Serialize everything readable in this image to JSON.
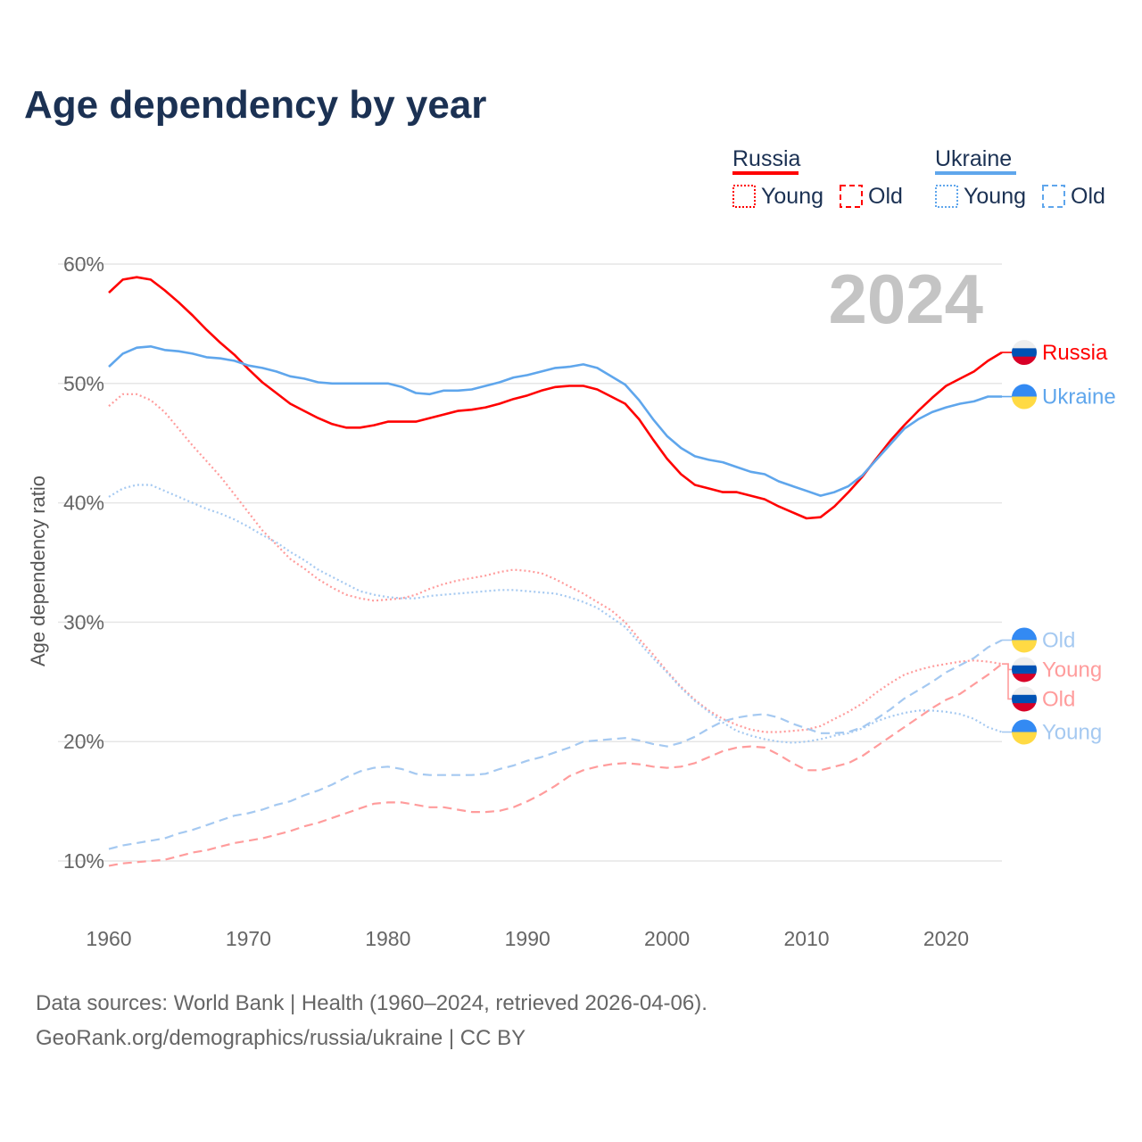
{
  "title": "Age dependency by year",
  "year_badge": "2024",
  "source_line1": "Data sources: World Bank | Health (1960–2024, retrieved 2026-04-06).",
  "source_line2": "GeoRank.org/demographics/russia/ukraine | CC BY",
  "legend": {
    "groups": [
      {
        "name": "Russia",
        "color": "#ff0000",
        "young": "Young",
        "old": "Old"
      },
      {
        "name": "Ukraine",
        "color": "#5fa6ec",
        "young": "Young",
        "old": "Old"
      }
    ]
  },
  "chart_data": {
    "type": "line",
    "title": "Age dependency by year",
    "xlabel": "",
    "ylabel": "Age dependency ratio",
    "xlim": [
      1960,
      2024
    ],
    "ylim": [
      10,
      60
    ],
    "x_ticks": [
      "1960",
      "1970",
      "1980",
      "1990",
      "2000",
      "2010",
      "2020"
    ],
    "y_ticks": [
      "10%",
      "20%",
      "30%",
      "40%",
      "50%",
      "60%"
    ],
    "y_tick_values": [
      10,
      20,
      30,
      40,
      50,
      60
    ],
    "x_tick_values": [
      1960,
      1970,
      1980,
      1990,
      2000,
      2010,
      2020
    ],
    "start_year": 1960,
    "grid": true,
    "legend_position": "top-right",
    "series": [
      {
        "name": "Russia",
        "label": "Russia",
        "country": "russia",
        "style": "solid",
        "color": "#ff0000",
        "values": [
          57.6,
          58.7,
          58.9,
          58.7,
          57.8,
          56.8,
          55.7,
          54.5,
          53.4,
          52.4,
          51.2,
          50.1,
          49.2,
          48.3,
          47.7,
          47.1,
          46.6,
          46.3,
          46.3,
          46.5,
          46.8,
          46.8,
          46.8,
          47.1,
          47.4,
          47.7,
          47.8,
          48.0,
          48.3,
          48.7,
          49.0,
          49.4,
          49.7,
          49.8,
          49.8,
          49.5,
          48.9,
          48.3,
          47.0,
          45.3,
          43.7,
          42.4,
          41.5,
          41.2,
          40.9,
          40.9,
          40.6,
          40.3,
          39.7,
          39.2,
          38.7,
          38.8,
          39.7,
          40.9,
          42.2,
          43.7,
          45.2,
          46.5,
          47.7,
          48.8,
          49.8,
          50.4,
          51.0,
          51.9,
          52.6
        ]
      },
      {
        "name": "Ukraine",
        "label": "Ukraine",
        "country": "ukraine",
        "style": "solid",
        "color": "#5fa6ec",
        "values": [
          51.4,
          52.5,
          53.0,
          53.1,
          52.8,
          52.7,
          52.5,
          52.2,
          52.1,
          51.9,
          51.5,
          51.3,
          51.0,
          50.6,
          50.4,
          50.1,
          50.0,
          50.0,
          50.0,
          50.0,
          50.0,
          49.7,
          49.2,
          49.1,
          49.4,
          49.4,
          49.5,
          49.8,
          50.1,
          50.5,
          50.7,
          51.0,
          51.3,
          51.4,
          51.6,
          51.3,
          50.6,
          49.9,
          48.6,
          47.0,
          45.6,
          44.6,
          43.9,
          43.6,
          43.4,
          43.0,
          42.6,
          42.4,
          41.8,
          41.4,
          41.0,
          40.6,
          40.9,
          41.4,
          42.3,
          43.6,
          44.9,
          46.2,
          47.0,
          47.6,
          48.0,
          48.3,
          48.5,
          48.9,
          48.9
        ]
      },
      {
        "name": "Russia Young",
        "label": "Young",
        "country": "russia",
        "style": "dotted",
        "color": "#ff9c9c",
        "values": [
          48.1,
          49.1,
          49.1,
          48.6,
          47.6,
          46.2,
          44.8,
          43.5,
          42.2,
          40.7,
          39.2,
          37.7,
          36.5,
          35.3,
          34.5,
          33.6,
          32.9,
          32.3,
          32.0,
          31.8,
          31.9,
          32.0,
          32.3,
          32.8,
          33.2,
          33.5,
          33.7,
          33.9,
          34.2,
          34.4,
          34.3,
          34.1,
          33.6,
          33.0,
          32.4,
          31.7,
          31.0,
          30.0,
          28.6,
          27.3,
          25.9,
          24.6,
          23.5,
          22.6,
          21.9,
          21.4,
          21.0,
          20.8,
          20.8,
          20.9,
          21.0,
          21.3,
          21.9,
          22.5,
          23.2,
          24.1,
          24.9,
          25.6,
          26.0,
          26.3,
          26.5,
          26.7,
          26.8,
          26.7,
          26.5
        ]
      },
      {
        "name": "Ukraine Young",
        "label": "Young",
        "country": "ukraine",
        "style": "dotted",
        "color": "#a5c9f1",
        "values": [
          40.5,
          41.2,
          41.5,
          41.5,
          41.0,
          40.5,
          40.0,
          39.5,
          39.1,
          38.6,
          38.0,
          37.3,
          36.7,
          35.9,
          35.2,
          34.4,
          33.8,
          33.2,
          32.6,
          32.3,
          32.1,
          32.0,
          32.0,
          32.2,
          32.3,
          32.4,
          32.5,
          32.6,
          32.7,
          32.7,
          32.6,
          32.5,
          32.4,
          32.1,
          31.7,
          31.2,
          30.4,
          29.6,
          28.3,
          27.0,
          25.8,
          24.5,
          23.4,
          22.5,
          21.6,
          20.9,
          20.5,
          20.2,
          20.0,
          19.9,
          20.0,
          20.2,
          20.5,
          20.7,
          21.1,
          21.7,
          22.1,
          22.4,
          22.6,
          22.6,
          22.5,
          22.3,
          21.9,
          21.2,
          20.8
        ]
      },
      {
        "name": "Russia Old",
        "label": "Old",
        "country": "russia",
        "style": "dashed",
        "color": "#ff9c9c",
        "values": [
          9.6,
          9.8,
          9.9,
          10.0,
          10.1,
          10.4,
          10.7,
          10.9,
          11.2,
          11.5,
          11.7,
          11.9,
          12.2,
          12.5,
          12.9,
          13.2,
          13.6,
          14.0,
          14.4,
          14.8,
          14.9,
          14.9,
          14.7,
          14.5,
          14.5,
          14.3,
          14.1,
          14.1,
          14.2,
          14.5,
          15.0,
          15.6,
          16.3,
          17.1,
          17.6,
          17.9,
          18.1,
          18.2,
          18.1,
          17.9,
          17.8,
          17.9,
          18.2,
          18.7,
          19.2,
          19.5,
          19.6,
          19.5,
          18.9,
          18.2,
          17.6,
          17.6,
          17.9,
          18.2,
          18.8,
          19.6,
          20.4,
          21.2,
          22.0,
          22.8,
          23.5,
          24.0,
          24.8,
          25.6,
          26.5
        ]
      },
      {
        "name": "Ukraine Old",
        "label": "Old",
        "country": "ukraine",
        "style": "dashed",
        "color": "#a5c9f1",
        "values": [
          11.0,
          11.3,
          11.5,
          11.7,
          11.9,
          12.3,
          12.6,
          13.0,
          13.4,
          13.8,
          14.0,
          14.3,
          14.7,
          15.0,
          15.5,
          15.9,
          16.4,
          17.0,
          17.5,
          17.8,
          17.9,
          17.7,
          17.3,
          17.2,
          17.2,
          17.2,
          17.2,
          17.3,
          17.7,
          18.0,
          18.4,
          18.7,
          19.1,
          19.5,
          20.0,
          20.1,
          20.2,
          20.3,
          20.1,
          19.8,
          19.6,
          19.9,
          20.4,
          21.1,
          21.7,
          22.0,
          22.2,
          22.3,
          22.0,
          21.5,
          21.1,
          20.7,
          20.7,
          20.8,
          21.2,
          21.9,
          22.7,
          23.6,
          24.3,
          25.0,
          25.8,
          26.4,
          27.0,
          27.9,
          28.5
        ]
      }
    ]
  }
}
